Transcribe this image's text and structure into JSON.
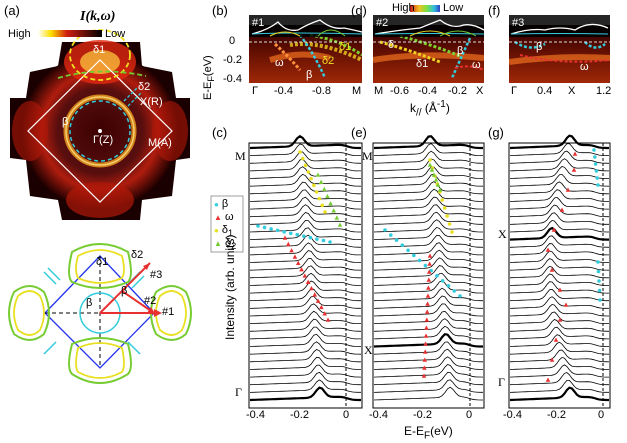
{
  "panels": {
    "a": {
      "label": "(a)",
      "title": "I(k,ω)",
      "high": "High",
      "low": "Low",
      "pts": {
        "d1": "δ1",
        "d2": "δ2",
        "xr": "X(R)",
        "beta": "β",
        "gz": "Γ(Z)",
        "ma": "M(A)"
      },
      "lower": {
        "d1": "δ1",
        "d2": "δ2",
        "beta": "β",
        "beta1": "β",
        "c3": "#3",
        "c2": "#2",
        "c1": "#1"
      }
    },
    "b": {
      "label": "(b)",
      "cut": "#1",
      "ticks": [
        "Γ",
        "-0.4",
        "-0.8",
        "M"
      ],
      "bands": [
        "δ1",
        "δ2",
        "ω",
        "β"
      ]
    },
    "c": {
      "label": "(c)",
      "ticks": [
        "-0.4",
        "-0.2",
        "0"
      ],
      "sym": [
        "M",
        "Γ"
      ]
    },
    "d": {
      "label": "(d)",
      "cut": "#2",
      "ticks": [
        "M",
        "-0.6",
        "-0.4",
        "-0.2",
        "X"
      ],
      "bands": [
        "δ",
        "δ1",
        "ω",
        "β"
      ]
    },
    "e": {
      "label": "(e)",
      "ticks": [
        "-0.4",
        "-0.2",
        "0"
      ],
      "sym": [
        "M",
        "X"
      ]
    },
    "f": {
      "label": "(f)",
      "cut": "#3",
      "ticks": [
        "Γ",
        "0.4",
        "X",
        "1.2"
      ],
      "bands": [
        "β",
        "ω"
      ]
    },
    "g": {
      "label": "(g)",
      "ticks": [
        "-0.4",
        "-0.2",
        "0"
      ],
      "sym": [
        "X",
        "Γ"
      ]
    }
  },
  "colorbar": {
    "high": "High",
    "low": "Low"
  },
  "axes": {
    "energy": "E-E",
    "energy_sub": "F",
    "energy_unit": "(eV)",
    "kpar": "k",
    "kpar_sub": "//",
    "kpar_unit": "(Å",
    "kpar_exp": "-1",
    "kpar_close": ")",
    "intensity": "Intensity (arb. units)",
    "ex": "E-E",
    "ex_sub": "F",
    "ex_unit": "(eV)",
    "y_ticks": [
      "0",
      "-0.2",
      "-0.4"
    ]
  },
  "legend": [
    {
      "sym": "●",
      "name": "β",
      "color": "#33ccdd"
    },
    {
      "sym": "▲",
      "name": "ω",
      "color": "#e83030"
    },
    {
      "sym": "●",
      "name": "δ",
      "sub": "1",
      "color": "#e8e020"
    },
    {
      "sym": "▲",
      "name": "δ",
      "sub": "2",
      "color": "#77cc33"
    }
  ],
  "colors": {
    "beta": "#33ccdd",
    "omega": "#e83030",
    "delta1": "#e8e020",
    "delta2": "#77cc33",
    "blue": "#3355ee"
  }
}
